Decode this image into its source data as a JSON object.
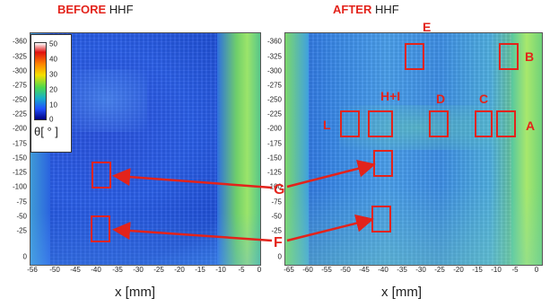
{
  "titles": {
    "left": {
      "highlight": "BEFORE",
      "rest": "HHF"
    },
    "right": {
      "highlight": "AFTER",
      "rest": "HHF"
    }
  },
  "colorbar": {
    "ticks": [
      "50",
      "40",
      "30",
      "20",
      "10",
      "0"
    ],
    "label": "θ[ ° ]"
  },
  "y_ticks": [
    "-360",
    "-325",
    "-300",
    "-275",
    "-250",
    "-225",
    "-200",
    "-175",
    "-150",
    "-125",
    "-100",
    "-75",
    "-50",
    "-25",
    "0"
  ],
  "left_x_ticks": [
    "-56",
    "-50",
    "-45",
    "-40",
    "-35",
    "-30",
    "-25",
    "-20",
    "-15",
    "-10",
    "-5",
    "0"
  ],
  "right_x_ticks": [
    "-65",
    "-60",
    "-55",
    "-50",
    "-45",
    "-40",
    "-35",
    "-30",
    "-25",
    "-20",
    "-15",
    "-10",
    "-5",
    "0"
  ],
  "x_label": "x [mm]",
  "region_labels": {
    "A": "A",
    "B": "B",
    "C": "C",
    "D": "D",
    "E": "E",
    "HI": "H+I",
    "L": "L",
    "G": "G",
    "F": "F"
  },
  "colors": {
    "annotation": "#e3231b",
    "low": "#000080",
    "high": "#e01010"
  }
}
